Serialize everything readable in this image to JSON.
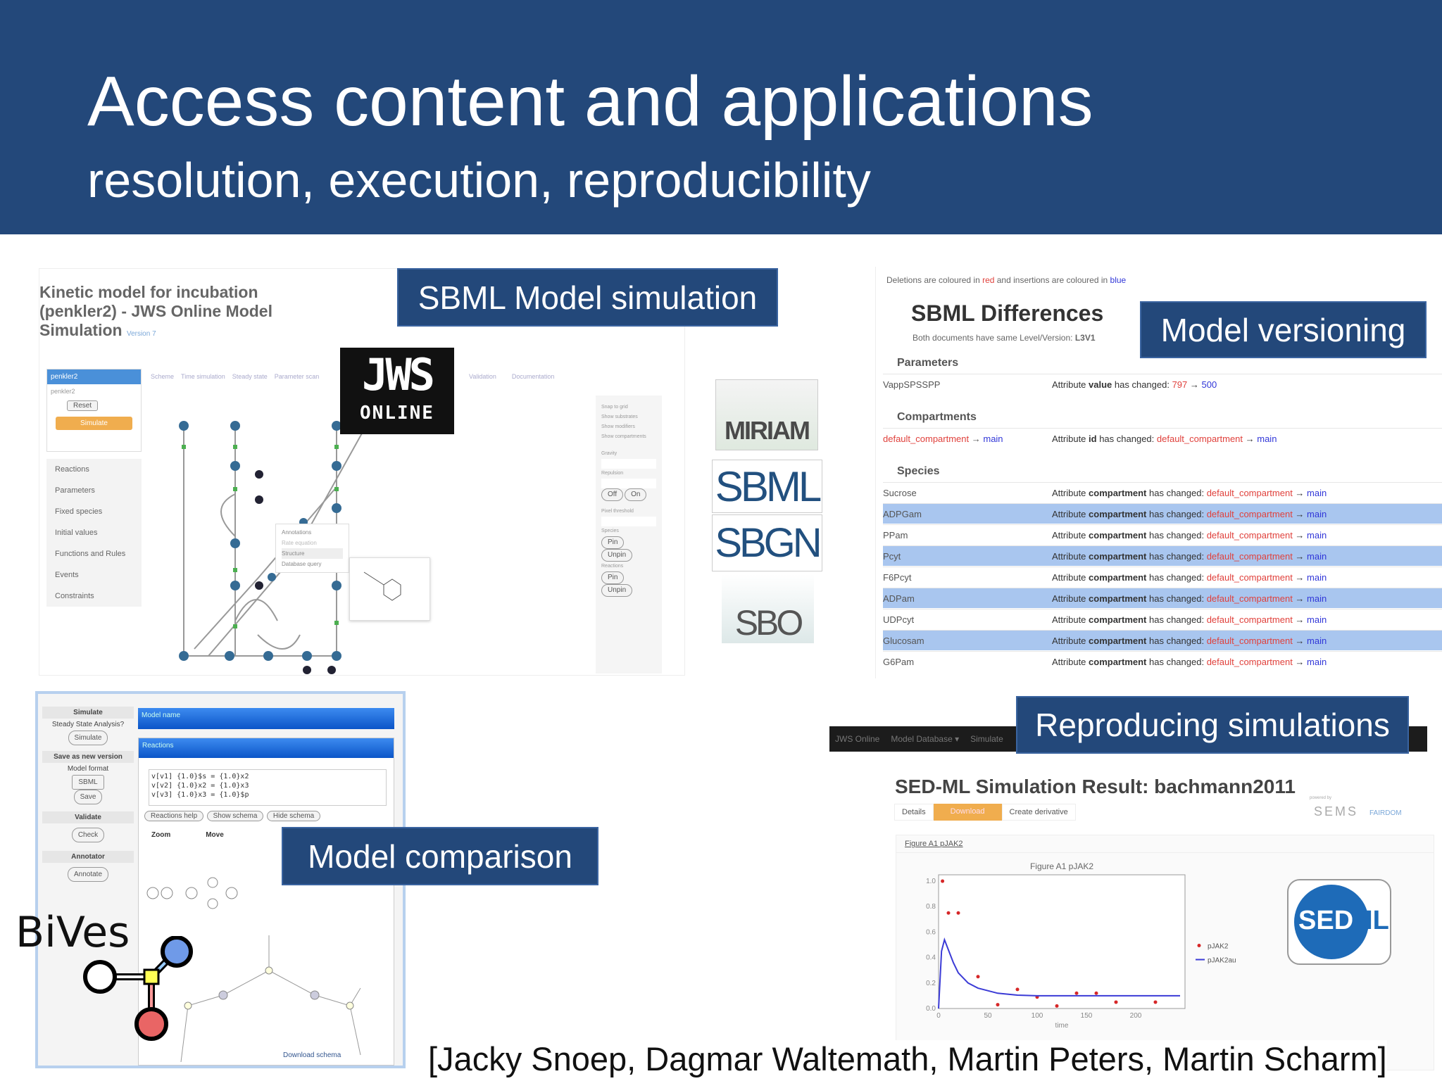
{
  "header": {
    "title": "Access content and applications",
    "subtitle": "resolution, execution, reproducibility"
  },
  "labels": {
    "sbml_sim": "SBML Model simulation",
    "versioning": "Model versioning",
    "comparison": "Model comparison",
    "reproducing": "Reproducing simulations"
  },
  "jws": {
    "page_title": "Kinetic model for incubation (penkler2) - JWS Online Model Simulation",
    "version": "Version 7",
    "logo_top": "JWS",
    "logo_bottom": "ONLINE",
    "sidebar": [
      "Reactions",
      "Parameters",
      "Fixed species",
      "Initial values",
      "Functions and Rules",
      "Events",
      "Constraints"
    ],
    "panel_header": "penkler2",
    "panel_text": "penkler2",
    "reset": "Reset",
    "simulate": "Simulate",
    "tabs": [
      "Scheme",
      "Time simulation",
      "Steady state",
      "Parameter scan",
      "Validation",
      "Documentation"
    ],
    "context_menu": [
      "Annotations",
      "Rate equation",
      "Structure",
      "Database query"
    ],
    "settings": [
      "Snap to grid",
      "Show substrates",
      "Show modifiers",
      "Show compartments",
      "Gravity",
      "Repulsion",
      "Off",
      "On",
      "Pixel threshold",
      "Species",
      "Reactions",
      "Pin",
      "Unpin"
    ]
  },
  "logos": {
    "miriam": "MIRIAM",
    "sbml": "SBML",
    "sbgn": "SBGN",
    "sbo": "SBO"
  },
  "diff": {
    "legend_prefix": "Deletions are coloured in ",
    "red": "red",
    "legend_mid": " and insertions are coloured in ",
    "blue": "blue",
    "title": "SBML Differences",
    "level_note": "Both documents have same Level/Version: ",
    "level": "L3V1",
    "sections": {
      "parameters": "Parameters",
      "compartments": "Compartments",
      "species": "Species"
    },
    "param_row": {
      "name": "VappSPSSPP",
      "prefix": "Attribute ",
      "attr": "value",
      "mid": " has changed: ",
      "old": "797",
      "arrow": " → ",
      "new": "500"
    },
    "comp_row": {
      "old": "default_compartment",
      "arrow": " → ",
      "new": "main",
      "prefix": "Attribute ",
      "attr": "id",
      "mid": " has changed: "
    },
    "species_attr": "compartment",
    "species": [
      "Sucrose",
      "ADPGam",
      "PPam",
      "Pcyt",
      "F6Pcyt",
      "ADPam",
      "UDPcyt",
      "Glucosam",
      "G6Pam"
    ]
  },
  "bives": {
    "logo": "BiVes",
    "sidebar": [
      "Simulate",
      "Steady State Analysis?",
      "Simulate",
      "Save as new version",
      "Model format",
      "SBML",
      "Save",
      "Validate",
      "Check",
      "Annotator",
      "Annotate"
    ],
    "model_name": "Model name",
    "reactions": "Reactions",
    "reaction_lines": [
      "v[v1] {1.0}$s = {1.0}x2",
      "v[v2] {1.0}x2 = {1.0}x3",
      "v[v3] {1.0}x3 = {1.0}$p"
    ],
    "buttons": [
      "Reactions help",
      "Show schema",
      "Hide schema"
    ],
    "zoom": "Zoom",
    "move": "Move",
    "download": "Download schema"
  },
  "sedml": {
    "nav": [
      "JWS Online",
      "Model Database ▾",
      "Simulate"
    ],
    "title": "SED-ML Simulation Result: bachmann2011",
    "buttons": [
      "Details",
      "Download",
      "Create derivative"
    ],
    "powered": "powered by",
    "seems": "SEMS",
    "fairdom": "FAIRDOM",
    "figure_link": "Figure A1 pJAK2",
    "logo_left": "SED",
    "logo_right": "ML"
  },
  "chart_data": {
    "type": "scatter",
    "title": "Figure A1 pJAK2",
    "xlabel": "time",
    "ylabel": "",
    "xlim": [
      0,
      250
    ],
    "ylim": [
      0,
      1.05
    ],
    "x_ticks": [
      0,
      50,
      100,
      150,
      200
    ],
    "y_ticks": [
      "0.0",
      "0.2",
      "0.4",
      "0.6",
      "0.8",
      "1.0"
    ],
    "legend": "right",
    "series": [
      {
        "name": "pJAK2",
        "type": "scatter",
        "color": "#d62728",
        "x": [
          4,
          10,
          20,
          40,
          60,
          80,
          100,
          120,
          140,
          160,
          180,
          220
        ],
        "y": [
          1.0,
          0.75,
          0.75,
          0.25,
          0.03,
          0.15,
          0.09,
          0.02,
          0.12,
          0.12,
          0.05,
          0.05
        ]
      },
      {
        "name": "pJAK2au",
        "type": "line",
        "color": "#3b3bd6",
        "x": [
          0,
          3,
          6,
          10,
          15,
          20,
          30,
          40,
          60,
          80,
          100,
          150,
          200,
          245
        ],
        "y": [
          0.0,
          0.45,
          0.54,
          0.46,
          0.36,
          0.28,
          0.2,
          0.16,
          0.12,
          0.105,
          0.1,
          0.1,
          0.1,
          0.1
        ]
      }
    ]
  },
  "citation": "[Jacky Snoep, Dagmar Waltemath, Martin Peters, Martin Scharm]"
}
